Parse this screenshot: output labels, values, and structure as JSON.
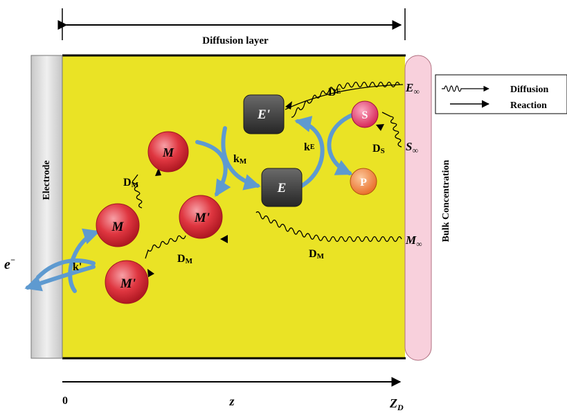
{
  "labels": {
    "diffusion_layer": "Diffusion layer",
    "electrode": "Electrode",
    "bulk_concentration": "Bulk Concentration",
    "electron": "e",
    "electron_sup": "−",
    "k_prime": "k'",
    "k_m": "k",
    "k_m_sub": "M",
    "k_e": "k",
    "k_e_sub": "E",
    "d_letter": "D",
    "d_m_sub": "M",
    "d_e_sub": "E",
    "d_s_sub": "S",
    "m": "M",
    "m_prime": "M'",
    "e": "E",
    "e_prime": "E'",
    "s": "S",
    "p": "P",
    "e_inf": "E",
    "s_inf": "S",
    "m_inf": "M",
    "inf_sub": "∞",
    "axis_zero": "0",
    "axis_z": "z",
    "axis_zd": "Z",
    "axis_zd_sub": "D"
  },
  "legend": {
    "diffusion": "Diffusion",
    "reaction": "Reaction"
  },
  "colors": {
    "layer_fill": "#eae325",
    "molecule_red": "#d92a35",
    "enzyme_dark": "#3d3d3d",
    "substrate_pink": "#e8436b",
    "product_orange": "#f08a3c",
    "curved_arrow_blue": "#5e9ad0",
    "bulk_pink": "#f8d0dc",
    "electrode_grey": "#d9d9d9"
  }
}
